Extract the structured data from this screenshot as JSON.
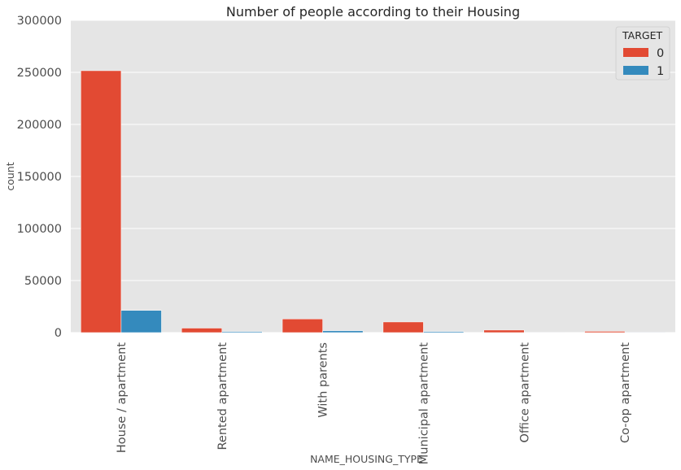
{
  "chart_data": {
    "type": "bar",
    "title": "Number of people according to their Housing",
    "xlabel": "NAME_HOUSING_TYPE",
    "ylabel": "count",
    "ylim": [
      0,
      300000
    ],
    "yticks": [
      0,
      50000,
      100000,
      150000,
      200000,
      250000,
      300000
    ],
    "grid": true,
    "legend": {
      "title": "TARGET",
      "placement": "top-right"
    },
    "categories": [
      "House / apartment",
      "Rented apartment",
      "With parents",
      "Municipal apartment",
      "Office apartment",
      "Co-op apartment"
    ],
    "series": [
      {
        "name": "0",
        "color": "#E24A33",
        "values": [
          251600,
          4300,
          13100,
          10200,
          2400,
          1200
        ]
      },
      {
        "name": "1",
        "color": "#348ABD",
        "values": [
          21300,
          900,
          1700,
          950,
          170,
          90
        ]
      }
    ],
    "colors": {
      "background": "#E5E5E5",
      "grid": "#FFFFFF"
    }
  }
}
